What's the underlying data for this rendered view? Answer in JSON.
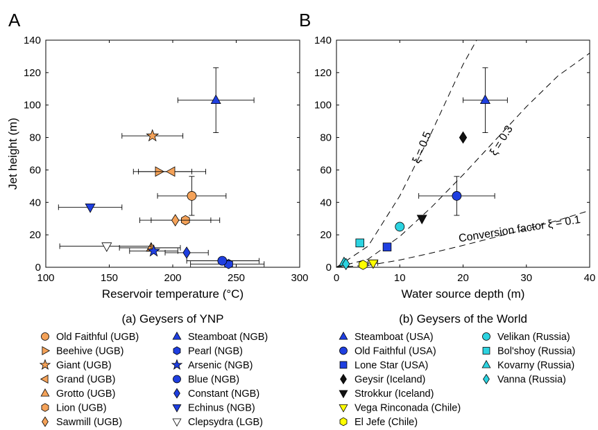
{
  "chart_data": [
    {
      "panel_label": "A",
      "type": "scatter",
      "xlabel": "Reservoir temperature (°C)",
      "ylabel": "Jet height (m)",
      "xlim": [
        100,
        300
      ],
      "ylim": [
        0,
        140
      ],
      "x_ticks": [
        100,
        150,
        200,
        250,
        300
      ],
      "y_ticks": [
        0,
        20,
        40,
        60,
        80,
        100,
        120,
        140
      ],
      "grid": false,
      "caption": "(a) Geysers of YNP",
      "colors": {
        "UGB": "#f4a259",
        "NGB": "#1f3fe0",
        "LGB": "#ffffff"
      },
      "series": [
        {
          "name": "Old Faithful (UGB)",
          "marker": "circle",
          "color": "#f4a259",
          "x": 215,
          "y": 44,
          "xerr": [
            188,
            242
          ],
          "yerr": [
            32,
            56
          ]
        },
        {
          "name": "Beehive (UGB)",
          "marker": "triangle-right",
          "color": "#f4a259",
          "x": 189,
          "y": 59,
          "xerr": [
            173,
            226
          ],
          "yerr": null
        },
        {
          "name": "Giant (UGB)",
          "marker": "star",
          "color": "#f4a259",
          "x": 184,
          "y": 81,
          "xerr": [
            160,
            208
          ],
          "yerr": null
        },
        {
          "name": "Grand (UGB)",
          "marker": "triangle-left",
          "color": "#f4a259",
          "x": 199,
          "y": 59,
          "xerr": [
            169,
            215
          ],
          "yerr": null
        },
        {
          "name": "Grotto (UGB)",
          "marker": "triangle-up",
          "color": "#f4a259",
          "x": 183,
          "y": 12,
          "xerr": [
            158,
            206
          ],
          "yerr": null
        },
        {
          "name": "Lion (UGB)",
          "marker": "hexagon",
          "color": "#f4a259",
          "x": 210,
          "y": 29,
          "xerr": [
            183,
            237
          ],
          "yerr": null
        },
        {
          "name": "Sawmill (UGB)",
          "marker": "diamond",
          "color": "#f4a259",
          "x": 202,
          "y": 29,
          "xerr": [
            174,
            230
          ],
          "yerr": null
        },
        {
          "name": "Steamboat (NGB)",
          "marker": "triangle-up",
          "color": "#1f3fe0",
          "x": 234,
          "y": 103,
          "xerr": [
            204,
            264
          ],
          "yerr": [
            83,
            123
          ]
        },
        {
          "name": "Pearl (NGB)",
          "marker": "hexagon",
          "color": "#1f3fe0",
          "x": 244,
          "y": 2,
          "xerr": [
            214,
            272
          ],
          "yerr": null
        },
        {
          "name": "Arsenic (NGB)",
          "marker": "star",
          "color": "#1f3fe0",
          "x": 185,
          "y": 10,
          "xerr": [
            166,
            204
          ],
          "yerr": null
        },
        {
          "name": "Blue (NGB)",
          "marker": "circle",
          "color": "#1f3fe0",
          "x": 239,
          "y": 4,
          "xerr": [
            211,
            268
          ],
          "yerr": null
        },
        {
          "name": "Constant (NGB)",
          "marker": "diamond",
          "color": "#1f3fe0",
          "x": 211,
          "y": 9,
          "xerr": [
            194,
            228
          ],
          "yerr": null
        },
        {
          "name": "Echinus (NGB)",
          "marker": "triangle-down",
          "color": "#1f3fe0",
          "x": 135,
          "y": 37,
          "xerr": [
            110,
            160
          ],
          "yerr": null
        },
        {
          "name": "Clepsydra (LGB)",
          "marker": "triangle-down",
          "color": "#ffffff",
          "x": 148,
          "y": 13,
          "xerr": [
            111,
            183
          ],
          "yerr": null
        }
      ]
    },
    {
      "panel_label": "B",
      "type": "scatter",
      "xlabel": "Water source depth (m)",
      "ylabel": "",
      "xlim": [
        0,
        40
      ],
      "ylim": [
        0,
        140
      ],
      "x_ticks": [
        0,
        10,
        20,
        30,
        40
      ],
      "y_ticks": [
        0,
        20,
        40,
        60,
        80,
        100,
        120,
        140
      ],
      "grid": false,
      "caption": "(b) Geysers of the World",
      "conversion_lines": [
        {
          "label": "Conversion factor ξ = 0.1",
          "xi": 0.1,
          "x": [
            0,
            5,
            10,
            15,
            20,
            25,
            30,
            35,
            40
          ],
          "y": [
            0,
            1.2,
            4.5,
            8.8,
            13.5,
            18.5,
            23.5,
            29,
            35
          ]
        },
        {
          "label": "ξ = 0.3",
          "xi": 0.3,
          "x": [
            0,
            5,
            10,
            15,
            20,
            25,
            30,
            35,
            40
          ],
          "y": [
            0,
            5,
            19,
            37,
            57,
            78,
            99,
            118,
            132
          ]
        },
        {
          "label": "ξ = 0.5",
          "xi": 0.5,
          "x": [
            0,
            5,
            10,
            15,
            20,
            25
          ],
          "y": [
            0,
            13,
            44,
            83,
            125,
            160
          ]
        }
      ],
      "series": [
        {
          "name": "Steamboat (USA)",
          "marker": "triangle-up",
          "color": "#1f3fe0",
          "x": 23.5,
          "y": 103,
          "xerr": [
            20,
            27
          ],
          "yerr": [
            83,
            123
          ]
        },
        {
          "name": "Old Faithful (USA)",
          "marker": "circle",
          "color": "#1f3fe0",
          "x": 19,
          "y": 44,
          "xerr": [
            13,
            25
          ],
          "yerr": [
            32,
            56
          ]
        },
        {
          "name": "Lone Star (USA)",
          "marker": "square",
          "color": "#1f3fe0",
          "x": 8,
          "y": 12.5,
          "xerr": null,
          "yerr": null
        },
        {
          "name": "Geysir (Iceland)",
          "marker": "diamond",
          "color": "#111111",
          "x": 20,
          "y": 80,
          "xerr": null,
          "yerr": null
        },
        {
          "name": "Strokkur (Iceland)",
          "marker": "triangle-down",
          "color": "#111111",
          "x": 13.5,
          "y": 30,
          "xerr": null,
          "yerr": null
        },
        {
          "name": "Vega Rinconada (Chile)",
          "marker": "triangle-down",
          "color": "#ffff00",
          "x": 5.8,
          "y": 2.5,
          "xerr": [
            5,
            6.5
          ],
          "yerr": null
        },
        {
          "name": "El Jefe (Chile)",
          "marker": "hexagon",
          "color": "#ffff00",
          "x": 4.2,
          "y": 1.5,
          "xerr": [
            3.6,
            4.8
          ],
          "yerr": null
        },
        {
          "name": "Velikan (Russia)",
          "marker": "circle",
          "color": "#2cd3e0",
          "x": 10,
          "y": 25,
          "xerr": null,
          "yerr": null
        },
        {
          "name": "Bol'shoy (Russia)",
          "marker": "square",
          "color": "#2cd3e0",
          "x": 3.7,
          "y": 15,
          "xerr": null,
          "yerr": null
        },
        {
          "name": "Kovarny (Russia)",
          "marker": "triangle-up",
          "color": "#2cd3e0",
          "x": 1.2,
          "y": 3,
          "xerr": null,
          "yerr": null
        },
        {
          "name": "Vanna (Russia)",
          "marker": "diamond",
          "color": "#2cd3e0",
          "x": 1.5,
          "y": 2,
          "xerr": null,
          "yerr": null
        }
      ]
    }
  ]
}
